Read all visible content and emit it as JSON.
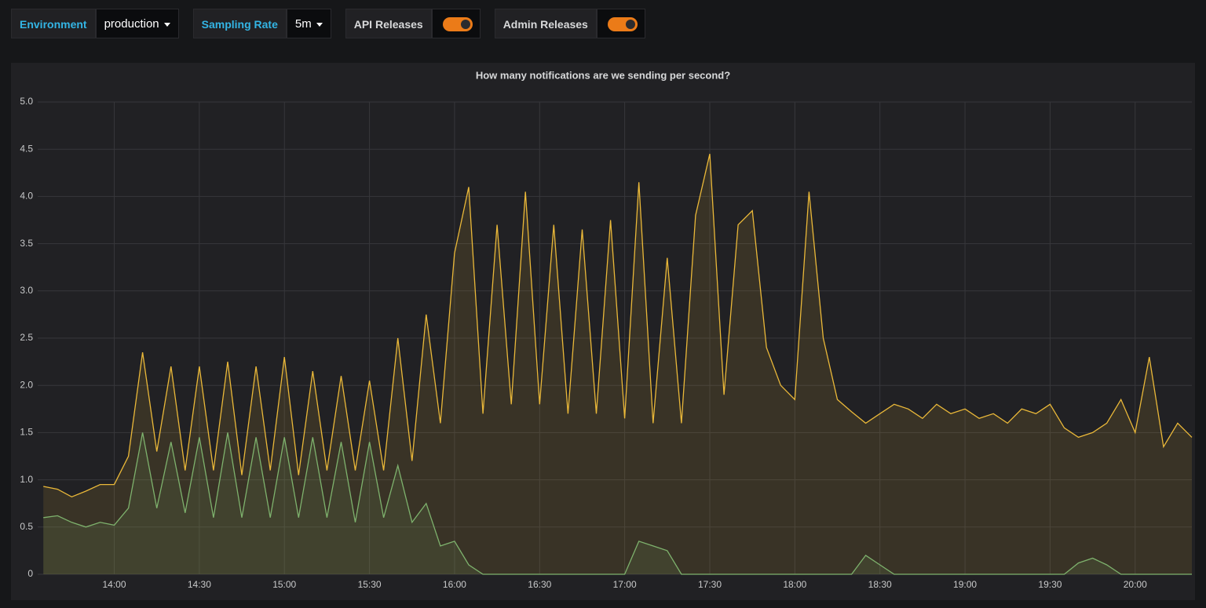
{
  "controls": {
    "environment": {
      "label": "Environment",
      "value": "production"
    },
    "sampling_rate": {
      "label": "Sampling Rate",
      "value": "5m"
    },
    "api_releases": {
      "label": "API Releases"
    },
    "admin_releases": {
      "label": "Admin Releases"
    }
  },
  "chart_data": {
    "type": "line",
    "title": "How many notifications are we sending per second?",
    "area": true,
    "grid": true,
    "x": [
      "13:35",
      "13:40",
      "13:45",
      "13:50",
      "13:55",
      "14:00",
      "14:05",
      "14:10",
      "14:15",
      "14:20",
      "14:25",
      "14:30",
      "14:35",
      "14:40",
      "14:45",
      "14:50",
      "14:55",
      "15:00",
      "15:05",
      "15:10",
      "15:15",
      "15:20",
      "15:25",
      "15:30",
      "15:35",
      "15:40",
      "15:45",
      "15:50",
      "15:55",
      "16:00",
      "16:05",
      "16:10",
      "16:15",
      "16:20",
      "16:25",
      "16:30",
      "16:35",
      "16:40",
      "16:45",
      "16:50",
      "16:55",
      "17:00",
      "17:05",
      "17:10",
      "17:15",
      "17:20",
      "17:25",
      "17:30",
      "17:35",
      "17:40",
      "17:45",
      "17:50",
      "17:55",
      "18:00",
      "18:05",
      "18:10",
      "18:15",
      "18:20",
      "18:25",
      "18:30",
      "18:35",
      "18:40",
      "18:45",
      "18:50",
      "18:55",
      "19:00",
      "19:05",
      "19:10",
      "19:15",
      "19:20",
      "19:25",
      "19:30",
      "19:35",
      "19:40",
      "19:45",
      "19:50",
      "19:55",
      "20:00",
      "20:05",
      "20:10",
      "20:15",
      "20:20"
    ],
    "series": [
      {
        "color": "#eab839",
        "values": [
          0.93,
          0.9,
          0.82,
          0.88,
          0.95,
          0.95,
          1.25,
          2.35,
          1.3,
          2.2,
          1.1,
          2.2,
          1.1,
          2.25,
          1.05,
          2.2,
          1.1,
          2.3,
          1.05,
          2.15,
          1.1,
          2.1,
          1.1,
          2.05,
          1.1,
          2.5,
          1.2,
          2.75,
          1.6,
          3.4,
          4.1,
          1.7,
          3.7,
          1.8,
          4.05,
          1.8,
          3.7,
          1.7,
          3.65,
          1.7,
          3.75,
          1.65,
          4.15,
          1.6,
          3.35,
          1.6,
          3.8,
          4.45,
          1.9,
          3.7,
          3.85,
          2.4,
          2.0,
          1.85,
          4.05,
          2.5,
          1.85,
          1.72,
          1.6,
          1.7,
          1.8,
          1.75,
          1.65,
          1.8,
          1.7,
          1.75,
          1.65,
          1.7,
          1.6,
          1.75,
          1.7,
          1.8,
          1.55,
          1.45,
          1.5,
          1.6,
          1.85,
          1.5,
          2.3,
          1.35,
          1.6,
          1.45
        ]
      },
      {
        "color": "#7eb26d",
        "values": [
          0.6,
          0.62,
          0.55,
          0.5,
          0.55,
          0.52,
          0.7,
          1.5,
          0.7,
          1.4,
          0.65,
          1.45,
          0.6,
          1.5,
          0.6,
          1.45,
          0.6,
          1.45,
          0.6,
          1.45,
          0.6,
          1.4,
          0.55,
          1.4,
          0.6,
          1.15,
          0.55,
          0.75,
          0.3,
          0.35,
          0.1,
          0,
          0,
          0,
          0,
          0,
          0,
          0,
          0,
          0,
          0,
          0,
          0.35,
          0.3,
          0.25,
          0,
          0,
          0,
          0,
          0,
          0,
          0,
          0,
          0,
          0,
          0,
          0,
          0,
          0.2,
          0.1,
          0,
          0,
          0,
          0,
          0,
          0,
          0,
          0,
          0,
          0,
          0,
          0,
          0,
          0.12,
          0.17,
          0.1,
          0,
          0,
          0,
          0,
          0,
          0
        ]
      }
    ],
    "xlim": [
      "13:33",
      "20:20"
    ],
    "xticks": [
      "14:00",
      "14:30",
      "15:00",
      "15:30",
      "16:00",
      "16:30",
      "17:00",
      "17:30",
      "18:00",
      "18:30",
      "19:00",
      "19:30",
      "20:00"
    ],
    "ylim": [
      0,
      5
    ],
    "yticks": [
      0,
      0.5,
      {
        "value": 1,
        "label": "1.0"
      },
      1.5,
      {
        "value": 2,
        "label": "2.0"
      },
      2.5,
      {
        "value": 3,
        "label": "3.0"
      },
      3.5,
      {
        "value": 4,
        "label": "4.0"
      },
      4.5,
      {
        "value": 5,
        "label": "5.0"
      }
    ]
  }
}
